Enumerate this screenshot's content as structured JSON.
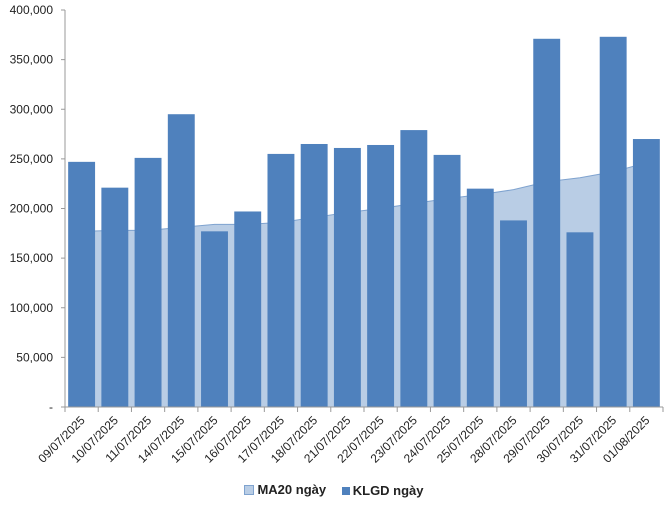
{
  "chart_data": {
    "type": "bar",
    "categories": [
      "09/07/2025",
      "10/07/2025",
      "11/07/2025",
      "14/07/2025",
      "15/07/2025",
      "16/07/2025",
      "17/07/2025",
      "18/07/2025",
      "21/07/2025",
      "22/07/2025",
      "23/07/2025",
      "24/07/2025",
      "25/07/2025",
      "28/07/2025",
      "29/07/2025",
      "30/07/2025",
      "31/07/2025",
      "01/08/2025"
    ],
    "series": [
      {
        "name": "KLGD ngày",
        "kind": "bar",
        "color": "#4f81bd",
        "values": [
          247000,
          221000,
          251000,
          295000,
          177000,
          197000,
          255000,
          265000,
          261000,
          264000,
          279000,
          254000,
          220000,
          188000,
          371000,
          176000,
          373000,
          270000
        ]
      },
      {
        "name": "MA20 ngày",
        "kind": "area",
        "color": "#b9cde5",
        "stroke": "#7fa3cf",
        "values": [
          177000,
          178000,
          178000,
          181000,
          184000,
          184000,
          186000,
          191000,
          196000,
          200000,
          205000,
          210000,
          214000,
          219000,
          227000,
          231000,
          237000,
          246000
        ]
      }
    ],
    "ylim": [
      0,
      400000
    ],
    "yticks": [
      0,
      50000,
      100000,
      150000,
      200000,
      250000,
      300000,
      350000,
      400000
    ],
    "ytick_labels": [
      "-",
      "50,000",
      "100,000",
      "150,000",
      "200,000",
      "250,000",
      "300,000",
      "350,000",
      "400,000"
    ],
    "title": "",
    "xlabel": "",
    "ylabel": "",
    "legend_position": "bottom",
    "grid": false
  },
  "legend": {
    "ma20_label": "MA20 ngày",
    "klgd_label": "KLGD ngày"
  }
}
